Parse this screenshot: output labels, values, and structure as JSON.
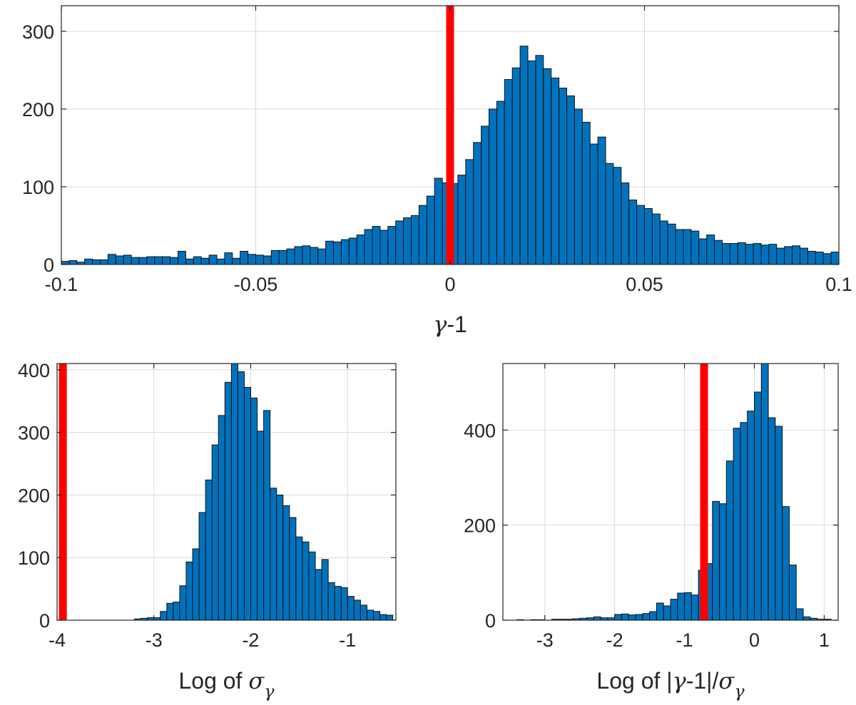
{
  "chart_data": [
    {
      "type": "bar",
      "title": "",
      "xlabel": "γ-1",
      "xlabel_parts": [
        "γ",
        "-1"
      ],
      "ylabel": "",
      "xlim": [
        -0.1,
        0.1
      ],
      "ylim": [
        0,
        333
      ],
      "grid": true,
      "xticks": [
        -0.1,
        -0.05,
        0,
        0.05,
        0.1
      ],
      "xtick_labels": [
        "-0.1",
        "-0.05",
        "0",
        "0.05",
        "0.1"
      ],
      "yticks": [
        0,
        100,
        200,
        300
      ],
      "ytick_labels": [
        "0",
        "100",
        "200",
        "300"
      ],
      "bin_start": -0.1,
      "bin_width": 0.002,
      "values": [
        4,
        5,
        3,
        7,
        6,
        6,
        13,
        11,
        12,
        9,
        9,
        10,
        10,
        10,
        9,
        17,
        7,
        10,
        8,
        12,
        7,
        15,
        8,
        17,
        13,
        12,
        11,
        18,
        18,
        20,
        23,
        24,
        22,
        20,
        30,
        29,
        32,
        34,
        38,
        45,
        49,
        44,
        49,
        56,
        60,
        63,
        76,
        88,
        111,
        105,
        104,
        115,
        135,
        157,
        178,
        200,
        210,
        238,
        253,
        281,
        262,
        269,
        252,
        240,
        227,
        217,
        200,
        183,
        155,
        164,
        130,
        125,
        105,
        83,
        76,
        72,
        65,
        56,
        52,
        45,
        45,
        43,
        33,
        38,
        31,
        27,
        27,
        28,
        26,
        27,
        25,
        26,
        21,
        23,
        24,
        21,
        17,
        16,
        14,
        16
      ],
      "marker_line": 0
    },
    {
      "type": "bar",
      "title": "",
      "xlabel": "Log of σγ",
      "xlabel_parts": [
        "Log of ",
        "σ",
        "γ"
      ],
      "ylabel": "",
      "xlim": [
        -4.0,
        -0.5
      ],
      "ylim": [
        0,
        410
      ],
      "grid": true,
      "xticks": [
        -4,
        -3,
        -2,
        -1
      ],
      "xtick_labels": [
        "-4",
        "-3",
        "-2",
        "-1"
      ],
      "yticks": [
        0,
        100,
        200,
        300,
        400
      ],
      "ytick_labels": [
        "0",
        "100",
        "200",
        "300",
        "400"
      ],
      "bin_start": -3.2,
      "bin_width": 0.0667,
      "values": [
        2,
        3,
        4,
        4,
        14,
        27,
        29,
        55,
        93,
        114,
        172,
        224,
        280,
        327,
        380,
        410,
        397,
        372,
        355,
        302,
        335,
        211,
        200,
        183,
        164,
        133,
        125,
        109,
        81,
        97,
        60,
        54,
        52,
        38,
        32,
        24,
        16,
        14,
        9,
        8
      ],
      "marker_line": -3.94
    },
    {
      "type": "bar",
      "title": "",
      "xlabel": "Log of |γ-1|/σγ",
      "xlabel_parts": [
        "Log of |",
        "γ",
        "-1|/",
        "σ",
        "γ"
      ],
      "ylabel": "",
      "xlim": [
        -3.6,
        1.2
      ],
      "ylim": [
        0,
        540
      ],
      "grid": true,
      "xticks": [
        -3,
        -2,
        -1,
        0,
        1
      ],
      "xtick_labels": [
        "-3",
        "-2",
        "-1",
        "0",
        "1"
      ],
      "yticks": [
        0,
        200,
        400
      ],
      "ytick_labels": [
        "0",
        "200",
        "400"
      ],
      "bin_start": -3.6,
      "bin_width": 0.1,
      "values": [
        0,
        0,
        1,
        0,
        1,
        1,
        0,
        2,
        2,
        2,
        3,
        4,
        5,
        7,
        5,
        5,
        12,
        13,
        11,
        12,
        14,
        18,
        36,
        30,
        44,
        57,
        58,
        53,
        105,
        119,
        250,
        245,
        335,
        404,
        416,
        440,
        480,
        540,
        426,
        408,
        239,
        116,
        24,
        7,
        4,
        2,
        2,
        0
      ],
      "marker_line": -0.72
    }
  ],
  "colors": {
    "bar": "#0072bd",
    "marker": "#ff0000"
  }
}
